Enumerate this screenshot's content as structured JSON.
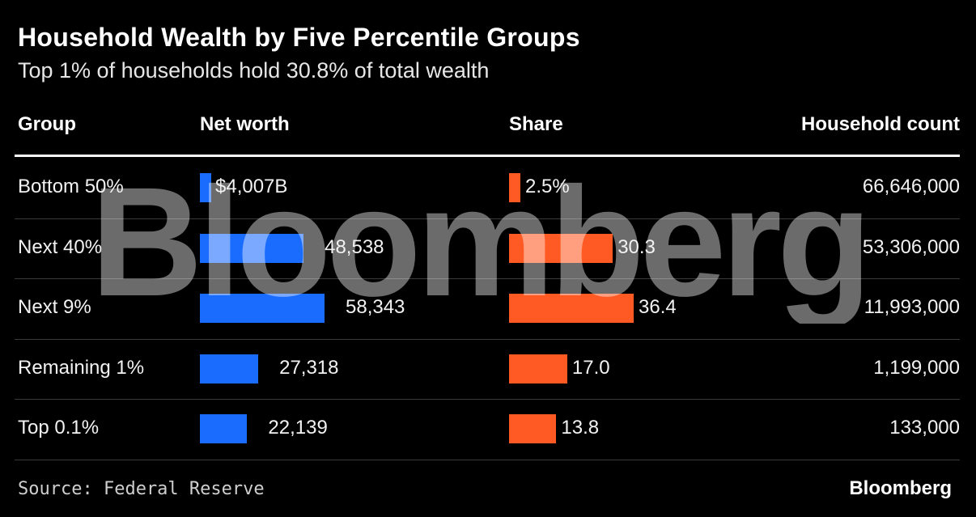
{
  "title": "Household Wealth by Five Percentile Groups",
  "subtitle": "Top 1% of households hold 30.8% of total wealth",
  "columns": {
    "group": "Group",
    "net_worth": "Net worth",
    "share": "Share",
    "household_count": "Household count"
  },
  "watermark": "Bloomberg",
  "source": "Source: Federal Reserve",
  "brand": "Bloomberg",
  "colors": {
    "background": "#000000",
    "net_worth_bar": "#1a6cff",
    "share_bar": "#ff5a23"
  },
  "chart_data": {
    "type": "table",
    "title": "Household Wealth by Five Percentile Groups",
    "subtitle": "Top 1% of households hold 30.8% of total wealth",
    "categories": [
      "Bottom 50%",
      "Next 40%",
      "Next 9%",
      "Remaining 1%",
      "Top 0.1%"
    ],
    "series": [
      {
        "name": "Net worth",
        "values": [
          4007,
          48538,
          58343,
          27318,
          22139
        ],
        "labels": [
          "$4,007B",
          "48,538",
          "58,343",
          "27,318",
          "22,139"
        ]
      },
      {
        "name": "Share",
        "values": [
          2.5,
          30.3,
          36.4,
          17.0,
          13.8
        ],
        "labels": [
          "2.5%",
          "30.3",
          "36.4",
          "17.0",
          "13.8"
        ]
      },
      {
        "name": "Household count",
        "values": [
          66646000,
          53306000,
          11993000,
          1199000,
          133000
        ],
        "labels": [
          "66,646,000",
          "53,306,000",
          "11,993,000",
          "1,199,000",
          "133,000"
        ]
      }
    ]
  }
}
